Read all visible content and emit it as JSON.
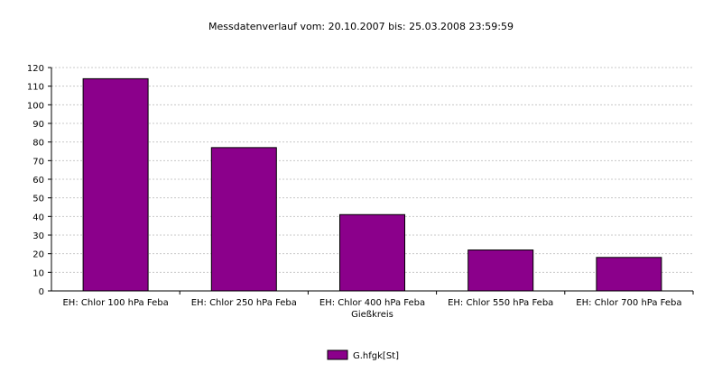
{
  "chart_data": {
    "type": "bar",
    "title": "Messdatenverlauf vom: 20.10.2007  bis: 25.03.2008 23:59:59",
    "categories": [
      "EH: Chlor 100 hPa Feba",
      "EH: Chlor 250 hPa Feba",
      "EH: Chlor 400 hPa Feba\nGießkreis",
      "EH: Chlor 550 hPa Feba",
      "EH: Chlor 700 hPa Feba"
    ],
    "series": [
      {
        "name": "G.hfgk[St]",
        "color": "#8b008b",
        "values": [
          114,
          77,
          41,
          22,
          18
        ]
      }
    ],
    "ylim": [
      0,
      120
    ],
    "yticks": [
      0,
      10,
      20,
      30,
      40,
      50,
      60,
      70,
      80,
      90,
      100,
      110,
      120
    ],
    "grid": true
  }
}
